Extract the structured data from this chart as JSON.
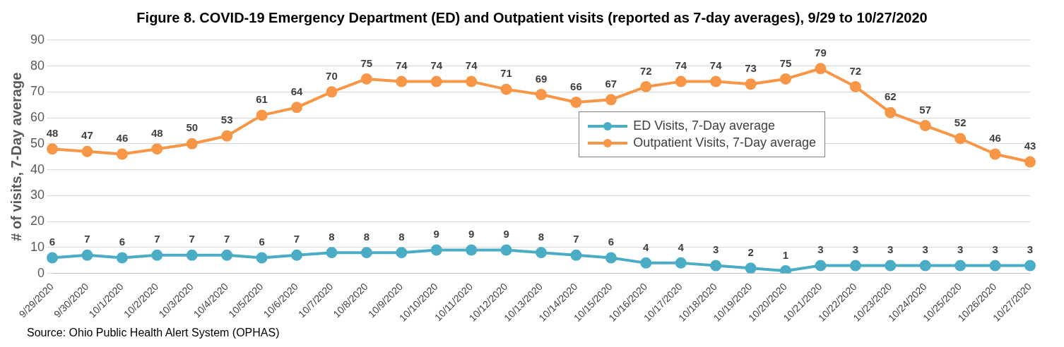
{
  "chart_data": {
    "type": "line",
    "title": "Figure 8.  COVID-19 Emergency Department (ED) and Outpatient visits (reported as 7-day averages), 9/29 to 10/27/2020",
    "ylabel": "# of visits, 7-Day average",
    "categories": [
      "9/29/2020",
      "9/30/2020",
      "10/1/2020",
      "10/2/2020",
      "10/3/2020",
      "10/4/2020",
      "10/5/2020",
      "10/6/2020",
      "10/7/2020",
      "10/8/2020",
      "10/9/2020",
      "10/10/2020",
      "10/11/2020",
      "10/12/2020",
      "10/13/2020",
      "10/14/2020",
      "10/15/2020",
      "10/16/2020",
      "10/17/2020",
      "10/18/2020",
      "10/19/2020",
      "10/20/2020",
      "10/21/2020",
      "10/22/2020",
      "10/23/2020",
      "10/24/2020",
      "10/25/2020",
      "10/26/2020",
      "10/27/2020"
    ],
    "series": [
      {
        "name": "ED Visits, 7-Day average",
        "color": "#4bacc6",
        "values": [
          6,
          7,
          6,
          7,
          7,
          7,
          6,
          7,
          8,
          8,
          8,
          9,
          9,
          9,
          8,
          7,
          6,
          4,
          4,
          3,
          2,
          1,
          3,
          3,
          3,
          3,
          3,
          3,
          3
        ]
      },
      {
        "name": "Outpatient Visits, 7-Day average",
        "color": "#f79646",
        "values": [
          48,
          47,
          46,
          48,
          50,
          53,
          61,
          64,
          70,
          75,
          74,
          74,
          74,
          71,
          69,
          66,
          67,
          72,
          74,
          74,
          73,
          75,
          79,
          72,
          62,
          57,
          52,
          46,
          43
        ]
      }
    ],
    "ylim": [
      0,
      90
    ],
    "yticks": [
      0,
      10,
      20,
      30,
      40,
      50,
      60,
      70,
      80,
      90
    ],
    "grid": "y",
    "legend": "right",
    "marker": "circle",
    "line_style": "solid",
    "data_labels": true,
    "annotations": [
      "Source:  Ohio Public Health Alert System (OPHAS)"
    ]
  }
}
